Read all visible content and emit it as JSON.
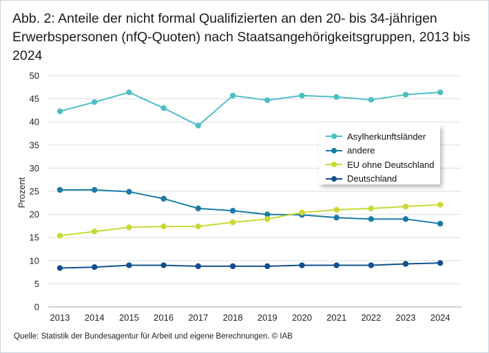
{
  "title": "Abb. 2: Anteile der nicht formal Qualifizierten an den 20- bis 34-jährigen Erwerbspersonen (nfQ-Quoten) nach Staatsangehörigkeitsgruppen, 2013 bis 2024",
  "source": "Quelle: Statistik der Bundesagentur für Arbeit und eigene Berechnungen.  © IAB",
  "chart_data": {
    "type": "line",
    "title": "Abb. 2: Anteile der nicht formal Qualifizierten an den 20- bis 34-jährigen Erwerbspersonen (nfQ-Quoten) nach Staatsangehörigkeitsgruppen, 2013 bis 2024",
    "xlabel": "",
    "ylabel": "Prozent",
    "ylim": [
      0,
      50
    ],
    "yticks": [
      0,
      5,
      10,
      15,
      20,
      25,
      30,
      35,
      40,
      45,
      50
    ],
    "grid": true,
    "legend_position": "right",
    "categories": [
      "2013",
      "2014",
      "2015",
      "2016",
      "2017",
      "2018",
      "2019",
      "2020",
      "2021",
      "2022",
      "2023",
      "2024"
    ],
    "series": [
      {
        "name": "Asylherkunftsländer",
        "color": "#4dbfc4",
        "values": [
          42.3,
          44.3,
          46.4,
          43.0,
          39.2,
          45.7,
          44.7,
          45.7,
          45.4,
          44.8,
          45.9,
          46.4
        ]
      },
      {
        "name": "andere",
        "color": "#1a7ba6",
        "values": [
          25.3,
          25.3,
          24.9,
          23.4,
          21.3,
          20.8,
          20.0,
          19.9,
          19.3,
          19.0,
          19.0,
          18.0
        ]
      },
      {
        "name": "EU ohne Deutschland",
        "color": "#c8d935",
        "values": [
          15.4,
          16.3,
          17.2,
          17.4,
          17.4,
          18.3,
          19.0,
          20.4,
          21.0,
          21.3,
          21.7,
          22.1
        ]
      },
      {
        "name": "Deutschland",
        "color": "#124f8c",
        "values": [
          8.4,
          8.6,
          9.0,
          9.0,
          8.8,
          8.8,
          8.8,
          9.0,
          9.0,
          9.0,
          9.3,
          9.5
        ]
      }
    ]
  }
}
